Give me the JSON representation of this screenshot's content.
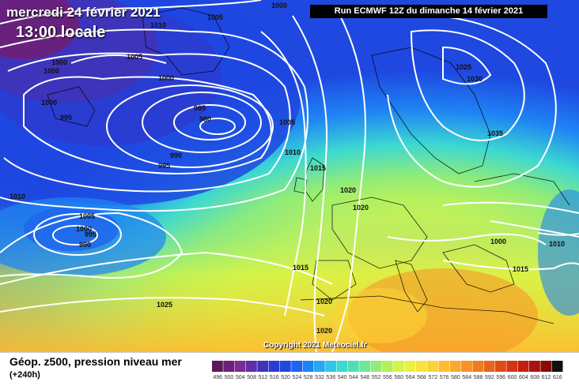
{
  "header": {
    "date_line": "mercredi 24 février 2021",
    "time_line": "13:00 locale",
    "run_info": "Run ECMWF 12Z du dimanche 14 février 2021"
  },
  "footer": {
    "title": "Géop. z500, pression niveau mer",
    "subtitle": "(+240h)",
    "copyright": "Copyright 2021 Meteociel.fr"
  },
  "legend": {
    "values": [
      "496",
      "500",
      "504",
      "508",
      "512",
      "516",
      "520",
      "524",
      "528",
      "532",
      "536",
      "540",
      "544",
      "548",
      "552",
      "556",
      "560",
      "564",
      "568",
      "572",
      "576",
      "580",
      "584",
      "588",
      "592",
      "596",
      "600",
      "604",
      "608",
      "612",
      "616"
    ],
    "colors": [
      "#5a1a5a",
      "#6e1f78",
      "#7a2b96",
      "#5d2fa8",
      "#3f33b8",
      "#2b3cd0",
      "#1e48e0",
      "#1e64ee",
      "#1e84f4",
      "#28a8f0",
      "#32c4e6",
      "#3cd8d2",
      "#4ee0b4",
      "#6ee898",
      "#90ec78",
      "#b4f05a",
      "#d4f448",
      "#ecf040",
      "#f8e43a",
      "#fcd236",
      "#fcbe30",
      "#faa82a",
      "#f69226",
      "#f07c22",
      "#e8641e",
      "#de4c1a",
      "#d23416",
      "#c21e12",
      "#a8140e",
      "#8a0a0a",
      "#101010"
    ]
  },
  "isobar_labels": [
    {
      "text": "1000"
    },
    {
      "text": "1005"
    },
    {
      "text": "1010"
    },
    {
      "text": "1000"
    },
    {
      "text": "1000"
    },
    {
      "text": "1005"
    },
    {
      "text": "1000"
    },
    {
      "text": "1000"
    },
    {
      "text": "995"
    },
    {
      "text": "985"
    },
    {
      "text": "980"
    },
    {
      "text": "990"
    },
    {
      "text": "995"
    },
    {
      "text": "1005"
    },
    {
      "text": "1010"
    },
    {
      "text": "1015"
    },
    {
      "text": "1020"
    },
    {
      "text": "1020"
    },
    {
      "text": "1025"
    },
    {
      "text": "1030"
    },
    {
      "text": "1035"
    },
    {
      "text": "1010"
    },
    {
      "text": "1005"
    },
    {
      "text": "1000"
    },
    {
      "text": "995"
    },
    {
      "text": "990"
    },
    {
      "text": "1015"
    },
    {
      "text": "1020"
    },
    {
      "text": "1020"
    },
    {
      "text": "1015"
    },
    {
      "text": "1010"
    },
    {
      "text": "1025"
    },
    {
      "text": "1000"
    }
  ]
}
